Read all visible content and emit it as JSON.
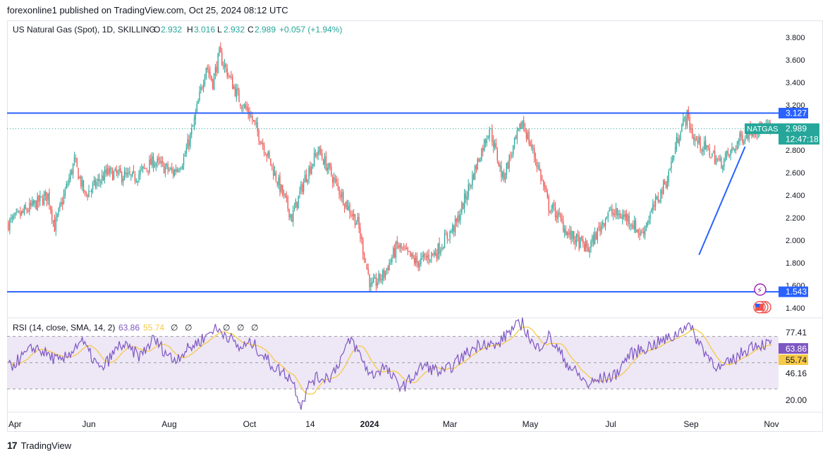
{
  "header": {
    "published_by": "forexonline1 published on TradingView.com, Oct 25, 2024 08:12 UTC"
  },
  "legend": {
    "symbol": "US Natural Gas (Spot), 1D, SKILLING",
    "o_label": "O",
    "o_value": "2.932",
    "h_label": "H",
    "h_value": "3.016",
    "l_label": "L",
    "l_value": "2.932",
    "c_label": "C",
    "c_value": "2.989",
    "change": "+0.057 (+1.94%)"
  },
  "price_axis": {
    "ticks": [
      "3.800",
      "3.600",
      "3.400",
      "3.200",
      "2.800",
      "2.600",
      "2.400",
      "2.200",
      "2.000",
      "1.800",
      "1.600",
      "1.400"
    ],
    "ticks_values": [
      3.8,
      3.6,
      3.4,
      3.2,
      2.8,
      2.6,
      2.4,
      2.2,
      2.0,
      1.8,
      1.6,
      1.4
    ],
    "range": [
      1.35,
      3.88
    ]
  },
  "levels": {
    "resistance_value": 3.127,
    "resistance_label": "3.127",
    "support_value": 1.543,
    "support_label": "1.543",
    "last_price_value": 2.989,
    "last_price_label": "2.989",
    "countdown": "12:47:18",
    "symbol_tag": "NATGAS"
  },
  "rsi": {
    "legend": "RSI (14, close, SMA, 14, 2)",
    "rsi_value": "63.86",
    "sma_value": "55.74",
    "level_upper": "77.41",
    "level_lower": "46.16",
    "level_bottom": "20.00",
    "upper_band": 70,
    "middle_band": 50,
    "lower_band": 30,
    "range": [
      15,
      82
    ],
    "eye_icons": [
      "∅",
      "∅",
      "∅",
      "∅",
      "∅"
    ]
  },
  "time_axis": {
    "labels": [
      "Apr",
      "Jun",
      "Aug",
      "Oct",
      "14",
      "2024",
      "Mar",
      "May",
      "Jul",
      "Sep",
      "Nov"
    ],
    "label_positions_day": [
      0,
      61,
      122,
      183,
      229,
      274,
      335,
      396,
      457,
      518,
      579
    ]
  },
  "chart_data": {
    "type": "candlestick",
    "title": "US Natural Gas (Spot), 1D, SKILLING",
    "days_total": 579,
    "anchors_day": [
      0,
      30,
      35,
      50,
      58,
      75,
      95,
      110,
      125,
      133,
      140,
      150,
      155,
      160,
      175,
      183,
      195,
      210,
      215,
      225,
      235,
      242,
      255,
      265,
      275,
      285,
      295,
      310,
      325,
      340,
      365,
      375,
      390,
      402,
      410,
      415,
      425,
      440,
      455,
      470,
      480,
      490,
      500,
      510,
      515,
      520,
      535,
      540,
      550,
      555,
      565
    ],
    "anchors_price": [
      2.15,
      2.4,
      2.12,
      2.7,
      2.4,
      2.6,
      2.55,
      2.7,
      2.6,
      2.72,
      3.0,
      3.55,
      3.4,
      3.65,
      3.25,
      3.12,
      2.8,
      2.35,
      2.2,
      2.55,
      2.8,
      2.65,
      2.35,
      2.15,
      1.58,
      1.7,
      1.95,
      1.8,
      1.9,
      2.15,
      3.0,
      2.55,
      3.05,
      2.65,
      2.3,
      2.25,
      2.05,
      1.92,
      2.25,
      2.2,
      2.05,
      2.3,
      2.55,
      3.0,
      3.1,
      2.9,
      2.75,
      2.68,
      2.8,
      2.9,
      2.99
    ],
    "rsi_anchors_day": [
      0,
      20,
      40,
      55,
      70,
      85,
      100,
      110,
      125,
      140,
      150,
      155,
      165,
      175,
      185,
      200,
      215,
      222,
      230,
      245,
      260,
      275,
      285,
      295,
      300,
      315,
      330,
      345,
      360,
      370,
      380,
      390,
      400,
      410,
      425,
      440,
      450,
      460,
      470,
      480,
      495,
      505,
      515,
      520,
      530,
      540,
      550,
      565
    ],
    "rsi_anchors_value": [
      46,
      62,
      50,
      67,
      44,
      64,
      55,
      68,
      52,
      63,
      70,
      76,
      72,
      61,
      65,
      48,
      38,
      18,
      37,
      40,
      68,
      40,
      47,
      34,
      32,
      48,
      42,
      55,
      66,
      62,
      74,
      80,
      60,
      70,
      48,
      33,
      38,
      40,
      55,
      60,
      66,
      70,
      80,
      72,
      56,
      45,
      52,
      64
    ],
    "trendline": {
      "start_day": 524,
      "start_price": 1.87,
      "end_day": 559,
      "end_price": 2.83
    },
    "time_labels": [
      "Apr",
      "Jun",
      "Aug",
      "Oct",
      "14",
      "2024",
      "Mar",
      "May",
      "Jul",
      "Sep",
      "Nov"
    ]
  },
  "footer": {
    "brand": "TradingView"
  },
  "colors": {
    "up": "#26a69a",
    "down": "#ef5350",
    "level_line": "#2962ff",
    "rsi_line": "#7e57c2",
    "rsi_sma": "#f7c948",
    "rsi_band": "#ede7f6",
    "axis_text": "#131722",
    "grid": "#e0e3eb"
  }
}
